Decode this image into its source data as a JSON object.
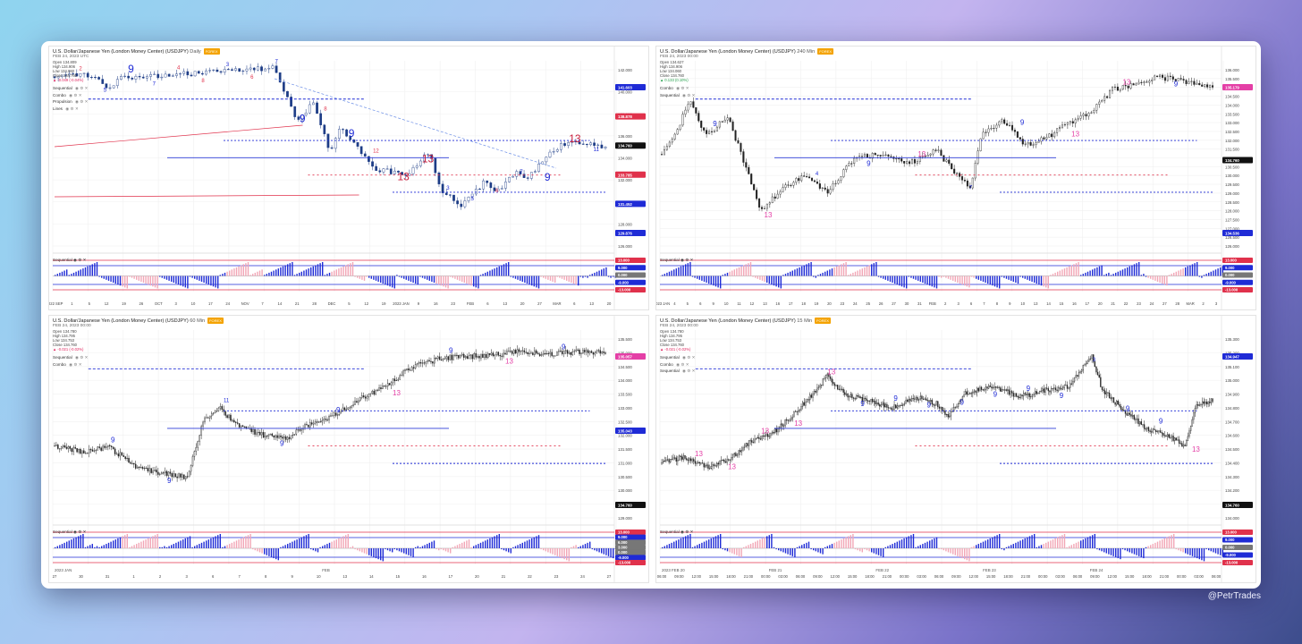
{
  "credit": "@PetrTrades",
  "colors": {
    "accent_blue": "#1f2bd6",
    "red": "#e0314b",
    "pink": "#e43fa6",
    "dark": "#1a1a1a",
    "price_tag": "#111111"
  },
  "panels": [
    {
      "title": "U.S. Dollar/Japanese Yen (London Money Center) (USDJPY)",
      "timeframe": "Daily",
      "tag": "FOREX",
      "date": "FEB 24, 2023 UTC",
      "ohlc": {
        "open_label": "Open",
        "open": "134.809",
        "high_label": "High",
        "high": "134.906",
        "low_label": "Low",
        "low": "134.060",
        "close_label": "Close",
        "close": "134.760",
        "change": "-0.049 (-0.04%)"
      },
      "indicators": [
        "Sequential",
        "Combo",
        "Propulsion",
        "Lines"
      ],
      "sub_indicator": "Sequential",
      "price_labels": [
        "142.000",
        "140.000",
        "138.000",
        "136.000",
        "134.000",
        "132.000",
        "130.000",
        "128.000",
        "126.000"
      ],
      "price_tags": [
        {
          "value": "141.603",
          "color": "#1f2bd6"
        },
        {
          "value": "138.878",
          "color": "#e0314b"
        },
        {
          "value": "134.760",
          "color": "#111111"
        },
        {
          "value": "133.785",
          "color": "#e0314b"
        },
        {
          "value": "131.452",
          "color": "#1f2bd6"
        },
        {
          "value": "129.876",
          "color": "#1f2bd6"
        }
      ],
      "sub_tags": [
        {
          "value": "13.000",
          "color": "#e0314b"
        },
        {
          "value": "9.000",
          "color": "#1f2bd6"
        },
        {
          "value": "0.000",
          "color": "#777777"
        },
        {
          "value": "-9.000",
          "color": "#1f2bd6"
        },
        {
          "value": "-13.000",
          "color": "#e0314b"
        }
      ],
      "time_labels": [
        "2022 SEP",
        "1",
        "5",
        "12",
        "19",
        "26",
        "OCT",
        "3",
        "10",
        "17",
        "24",
        "NOV",
        "7",
        "14",
        "21",
        "28",
        "DEC",
        "5",
        "12",
        "19",
        "2023 JAN",
        "9",
        "16",
        "23",
        "FEB",
        "6",
        "13",
        "20",
        "27",
        "MAR",
        "6",
        "13",
        "20"
      ],
      "counts": [
        "2",
        "5",
        "9",
        "7",
        "4",
        "8",
        "3",
        "6",
        "7",
        "9",
        "8",
        "9",
        "12",
        "13",
        "13",
        "3",
        "5",
        "6",
        "7",
        "9",
        "13",
        "11"
      ]
    },
    {
      "title": "U.S. Dollar/Japanese Yen (London Money Center) (USDJPY)",
      "timeframe": "240 Min",
      "tag": "FOREX",
      "date": "FEB 24, 2023 00:00",
      "ohlc": {
        "open_label": "Open",
        "open": "134.627",
        "high_label": "High",
        "high": "134.906",
        "low_label": "Low",
        "low": "134.060",
        "close_label": "Close",
        "close": "134.760",
        "change": "0.133 (0.10%)"
      },
      "indicators": [
        "Combo",
        "Sequential"
      ],
      "sub_indicator": "Sequential",
      "price_labels": [
        "136.000",
        "135.500",
        "135.000",
        "134.500",
        "134.000",
        "133.500",
        "133.000",
        "132.500",
        "132.000",
        "131.500",
        "131.000",
        "130.500",
        "130.000",
        "129.500",
        "129.000",
        "128.500",
        "128.000",
        "127.500",
        "127.000",
        "126.500",
        "126.000"
      ],
      "price_tags": [
        {
          "value": "135.179",
          "color": "#e43fa6"
        },
        {
          "value": "134.760",
          "color": "#111111"
        },
        {
          "value": "134.536",
          "color": "#1f2bd6"
        }
      ],
      "sub_tags": [
        {
          "value": "13.000",
          "color": "#e0314b"
        },
        {
          "value": "9.000",
          "color": "#1f2bd6"
        },
        {
          "value": "0.000",
          "color": "#777777"
        },
        {
          "value": "-9.000",
          "color": "#1f2bd6"
        },
        {
          "value": "-13.000",
          "color": "#e0314b"
        }
      ],
      "time_labels": [
        "2023 JAN",
        "4",
        "5",
        "6",
        "9",
        "10",
        "11",
        "12",
        "13",
        "16",
        "17",
        "18",
        "19",
        "20",
        "23",
        "24",
        "25",
        "26",
        "27",
        "30",
        "31",
        "FEB",
        "2",
        "3",
        "6",
        "7",
        "8",
        "9",
        "10",
        "13",
        "14",
        "15",
        "16",
        "17",
        "20",
        "21",
        "22",
        "23",
        "24",
        "27",
        "28",
        "MAR",
        "2",
        "3"
      ],
      "counts": [
        "9",
        "13",
        "4",
        "9",
        "13",
        "7",
        "9",
        "13",
        "13",
        "9"
      ]
    },
    {
      "title": "U.S. Dollar/Japanese Yen (London Money Center) (USDJPY)",
      "timeframe": "60 Min",
      "tag": "FOREX",
      "date": "FEB 24, 2023 00:00",
      "ohlc": {
        "open_label": "Open",
        "open": "134.780",
        "high_label": "High",
        "high": "134.795",
        "low_label": "Low",
        "low": "134.753",
        "close_label": "Close",
        "close": "134.760",
        "change": "-0.021 (-0.02%)"
      },
      "indicators": [
        "Sequential",
        "Combo"
      ],
      "sub_indicator": "Sequential",
      "price_labels": [
        "135.500",
        "135.000",
        "134.500",
        "134.000",
        "133.500",
        "133.000",
        "132.500",
        "132.000",
        "131.500",
        "131.000",
        "130.500",
        "130.000",
        "129.500",
        "129.000"
      ],
      "price_tags": [
        {
          "value": "135.057",
          "color": "#e43fa6"
        },
        {
          "value": "135.043",
          "color": "#1f2bd6"
        },
        {
          "value": "134.760",
          "color": "#111111"
        }
      ],
      "sub_tags": [
        {
          "value": "13.000",
          "color": "#e0314b"
        },
        {
          "value": "9.000",
          "color": "#1f2bd6"
        },
        {
          "value": "6.000",
          "color": "#777777"
        },
        {
          "value": "3.000",
          "color": "#777777"
        },
        {
          "value": "0.000",
          "color": "#777777"
        },
        {
          "value": "-9.000",
          "color": "#1f2bd6"
        },
        {
          "value": "-13.000",
          "color": "#e0314b"
        }
      ],
      "time_labels": [
        "27",
        "30",
        "31",
        "1",
        "2",
        "3",
        "6",
        "7",
        "8",
        "9",
        "10",
        "13",
        "14",
        "15",
        "16",
        "17",
        "20",
        "21",
        "22",
        "23",
        "24",
        "27"
      ],
      "axis_marks": [
        "2023 JAN",
        "FEB"
      ],
      "counts": [
        "9",
        "9",
        "11",
        "9",
        "9",
        "13",
        "9",
        "13",
        "9"
      ]
    },
    {
      "title": "U.S. Dollar/Japanese Yen (London Money Center) (USDJPY)",
      "timeframe": "15 Min",
      "tag": "FOREX",
      "date": "FEB 24, 2023 00:00",
      "ohlc": {
        "open_label": "Open",
        "open": "134.780",
        "high_label": "High",
        "high": "134.795",
        "low_label": "Low",
        "low": "134.753",
        "close_label": "Close",
        "close": "134.760",
        "change": "-0.021 (-0.02%)"
      },
      "indicators": [
        "Sequential",
        "Combo",
        "Sequential"
      ],
      "sub_indicator": "Sequential",
      "price_labels": [
        "135.300",
        "135.200",
        "135.100",
        "135.000",
        "134.900",
        "134.800",
        "134.700",
        "134.600",
        "134.500",
        "134.400",
        "134.300",
        "134.200",
        "134.100",
        "134.000"
      ],
      "price_tags": [
        {
          "value": "134.947",
          "color": "#1f2bd6"
        },
        {
          "value": "134.760",
          "color": "#111111"
        }
      ],
      "sub_tags": [
        {
          "value": "13.000",
          "color": "#e0314b"
        },
        {
          "value": "9.000",
          "color": "#1f2bd6"
        },
        {
          "value": "0.000",
          "color": "#777777"
        },
        {
          "value": "-9.000",
          "color": "#1f2bd6"
        },
        {
          "value": "-13.000",
          "color": "#e0314b"
        }
      ],
      "time_labels": [
        "06:00",
        "09:00",
        "12:00",
        "15:00",
        "18:00",
        "21:00",
        "00:00",
        "03:00",
        "06:00",
        "09:00",
        "12:00",
        "15:00",
        "18:00",
        "21:00",
        "00:00",
        "03:00",
        "06:00",
        "09:00",
        "12:00",
        "15:00",
        "18:00",
        "21:00",
        "00:00",
        "03:00",
        "06:00",
        "09:00",
        "12:00",
        "15:00",
        "18:00",
        "21:00",
        "00:00",
        "03:00",
        "06:00"
      ],
      "axis_marks": [
        "2023 FEB 20",
        "FEB 21",
        "FEB 22",
        "FEB 23",
        "FEB 24"
      ],
      "counts": [
        "13",
        "13",
        "13",
        "13",
        "13",
        "9",
        "9",
        "9",
        "9",
        "9",
        "9",
        "9",
        "3",
        "9",
        "9",
        "13"
      ]
    }
  ]
}
